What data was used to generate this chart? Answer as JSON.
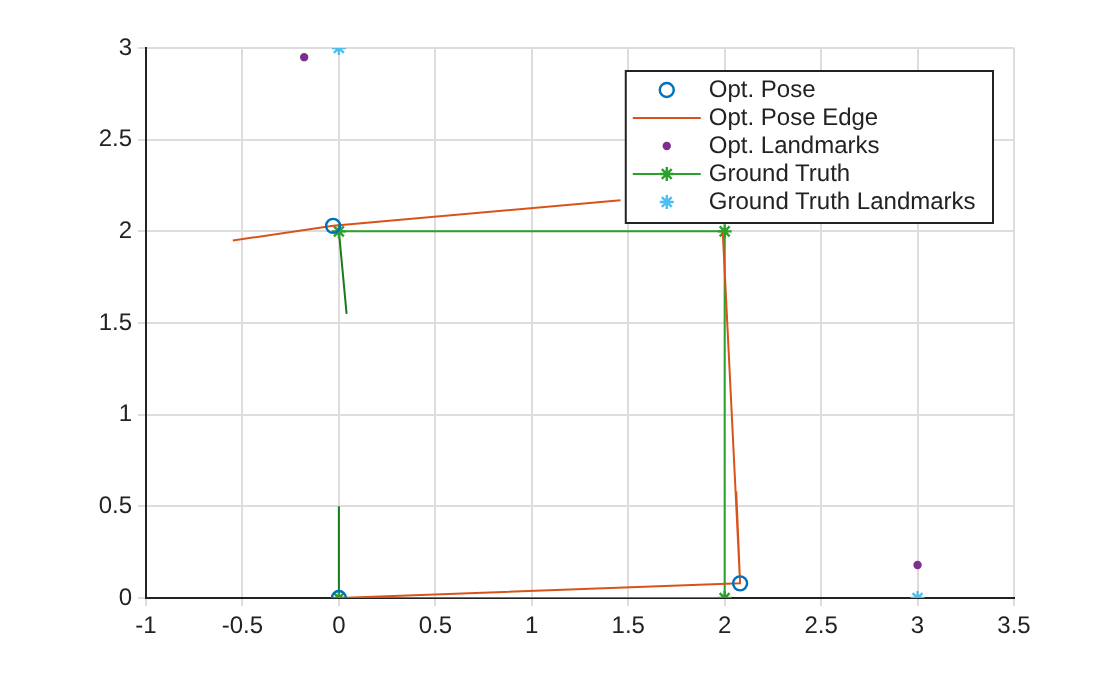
{
  "chart_data": {
    "type": "scatter",
    "xlim": [
      -1,
      3.5
    ],
    "xticks": [
      -1,
      -0.5,
      0,
      0.5,
      1,
      1.5,
      2,
      2.5,
      3,
      3.5
    ],
    "ylim": [
      0,
      3
    ],
    "yticks": [
      0,
      0.5,
      1,
      1.5,
      2,
      2.5,
      3
    ],
    "grid": true,
    "legend": "top right",
    "series": [
      {
        "name": "Opt. Pose",
        "type": "scatter",
        "marker": "circle",
        "color": "#0072bd",
        "x": [
          0,
          2.08,
          -0.03
        ],
        "values": [
          0,
          0.08,
          2.03
        ]
      },
      {
        "name": "Opt. Pose Edge",
        "type": "line",
        "marker": "none",
        "color": "#d95319",
        "x": [
          -0.55,
          -0.03,
          1.46,
          null,
          1.99,
          2.08,
          0,
          null,
          2.08,
          2.06
        ],
        "values": [
          1.95,
          2.03,
          2.17,
          null,
          2.0,
          0.08,
          0,
          null,
          0.08,
          0.58
        ]
      },
      {
        "name": "Opt. Landmarks",
        "type": "scatter",
        "marker": "circle",
        "color": "#7e2f8e",
        "x": [
          -0.18,
          3
        ],
        "values": [
          2.95,
          0.18
        ]
      },
      {
        "name": "Ground Truth",
        "type": "line",
        "marker": "cross",
        "color": "#2ca02c",
        "x": [
          0,
          2,
          2,
          0
        ],
        "values": [
          0,
          0,
          2,
          2
        ]
      },
      {
        "name": "Ground Truth Landmarks",
        "type": "scatter",
        "marker": "cross",
        "color": "#4dbeee",
        "x": [
          0,
          3
        ],
        "values": [
          3,
          0
        ]
      },
      {
        "type": "line",
        "marker": "none",
        "color": "#1b7a1b",
        "x": [
          0,
          0,
          null,
          0,
          0.04
        ],
        "values": [
          0,
          0.5,
          null,
          2,
          1.55
        ]
      }
    ]
  }
}
